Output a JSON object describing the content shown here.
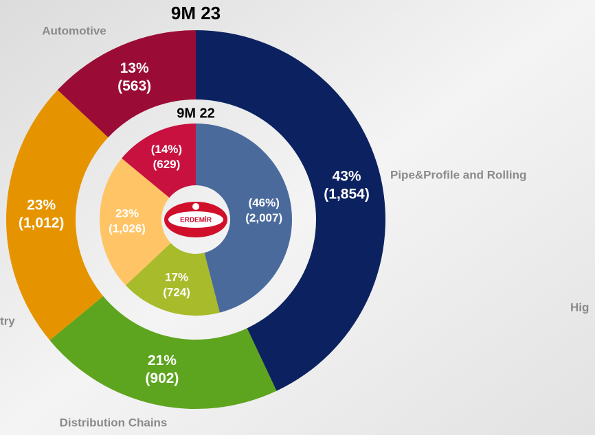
{
  "chart_data": [
    {
      "type": "donut",
      "title": "9M 23",
      "categories": [
        "Pipe&Profile and Rolling",
        "Distribution Chains",
        "try",
        "Automotive"
      ],
      "values": [
        43,
        21,
        23,
        13
      ],
      "value_labels": [
        "43%",
        "21%",
        "23%",
        "13%"
      ],
      "amounts": [
        1854,
        902,
        1012,
        563
      ],
      "amount_labels": [
        "(1,854)",
        "(902)",
        "(1,012)",
        "(563)"
      ],
      "colors": [
        "#0c2260",
        "#5ea51f",
        "#e59400",
        "#9a0c36"
      ],
      "annotations": [
        "Hig"
      ]
    },
    {
      "type": "donut",
      "title": "9M 22",
      "values": [
        46,
        17,
        23,
        14
      ],
      "value_labels": [
        "(46%)",
        "17%",
        "23%",
        "(14%)"
      ],
      "amounts": [
        2007,
        724,
        1026,
        629
      ],
      "amount_labels": [
        "(2,007)",
        "(724)",
        "(1,026)",
        "(629)"
      ],
      "colors": [
        "#4a6a9c",
        "#a8bb2a",
        "#ffc465",
        "#c8113f"
      ],
      "logo": "ERDEMİR"
    }
  ]
}
